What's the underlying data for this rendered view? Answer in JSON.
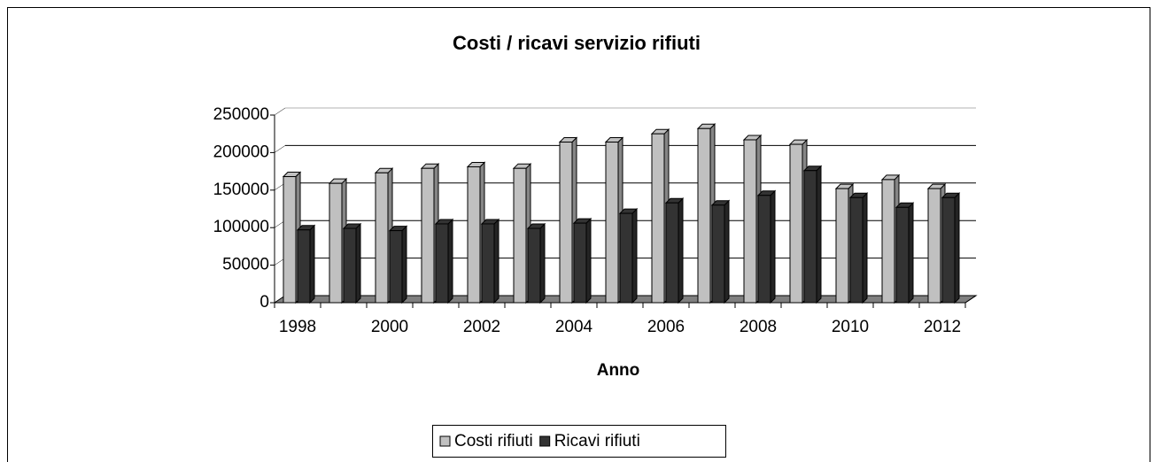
{
  "chart_data": {
    "type": "bar3d",
    "title": "Costi / ricavi servizio rifiuti",
    "x_label": "Anno",
    "categories": [
      "1998",
      null,
      "2000",
      null,
      "2002",
      null,
      "2004",
      null,
      "2006",
      null,
      "2008",
      null,
      "2010",
      null,
      "2012"
    ],
    "series": [
      {
        "name": "Costi rifiuti",
        "color": "#c0c0c0",
        "values": [
          168000,
          159000,
          173000,
          179000,
          181000,
          179000,
          214000,
          214000,
          225000,
          232000,
          217000,
          211000,
          152000,
          164000,
          152000
        ]
      },
      {
        "name": "Ricavi rifiuti",
        "color": "#333333",
        "values": [
          97000,
          99000,
          96000,
          105000,
          105000,
          99000,
          106000,
          119000,
          133000,
          130000,
          143000,
          176000,
          140000,
          127000,
          140000
        ]
      }
    ],
    "ylim": [
      0,
      250000
    ],
    "yticks": [
      0,
      50000,
      100000,
      150000,
      200000,
      250000
    ],
    "grid": true,
    "legend": "bottom"
  }
}
